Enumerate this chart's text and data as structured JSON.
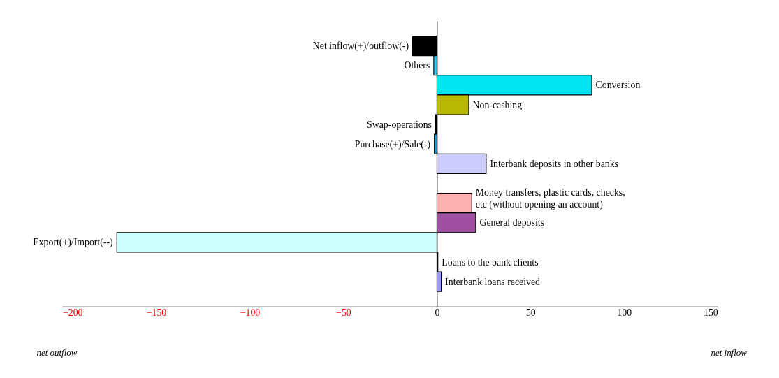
{
  "chart_data": {
    "type": "bar",
    "orientation": "horizontal",
    "categories": [
      "Net inflow(+)/outflow(-)",
      "Others",
      "Conversion",
      "Non-cashing",
      "Swap-operations",
      "Purchase(+)/Sale(-)",
      "Interbank deposits in other banks",
      null,
      "Money transfers, plastic cards, checks, etc (without opening an account)",
      "General deposits",
      "Export(+)/Import(--)",
      "Loans to the bank clients",
      "Interbank loans received"
    ],
    "values": [
      -13,
      -1.7,
      82.7,
      17,
      -0.7,
      -1.4,
      26.3,
      null,
      18.6,
      20.7,
      -171,
      0.5,
      2.3
    ],
    "colors": [
      "#000000",
      "#33ccff",
      "#00e5f0",
      "#b8b800",
      "#000000",
      "#1ba1e2",
      "#ccccff",
      null,
      "#ffb0b0",
      "#a050a0",
      "#ccffff",
      "#000000",
      "#9999ff"
    ],
    "xlim": [
      -200,
      150
    ],
    "xticks": [
      -200,
      -150,
      -100,
      -50,
      0,
      50,
      100,
      150
    ],
    "grid": false,
    "annotations": [
      "net outflow",
      "net inflow"
    ]
  }
}
